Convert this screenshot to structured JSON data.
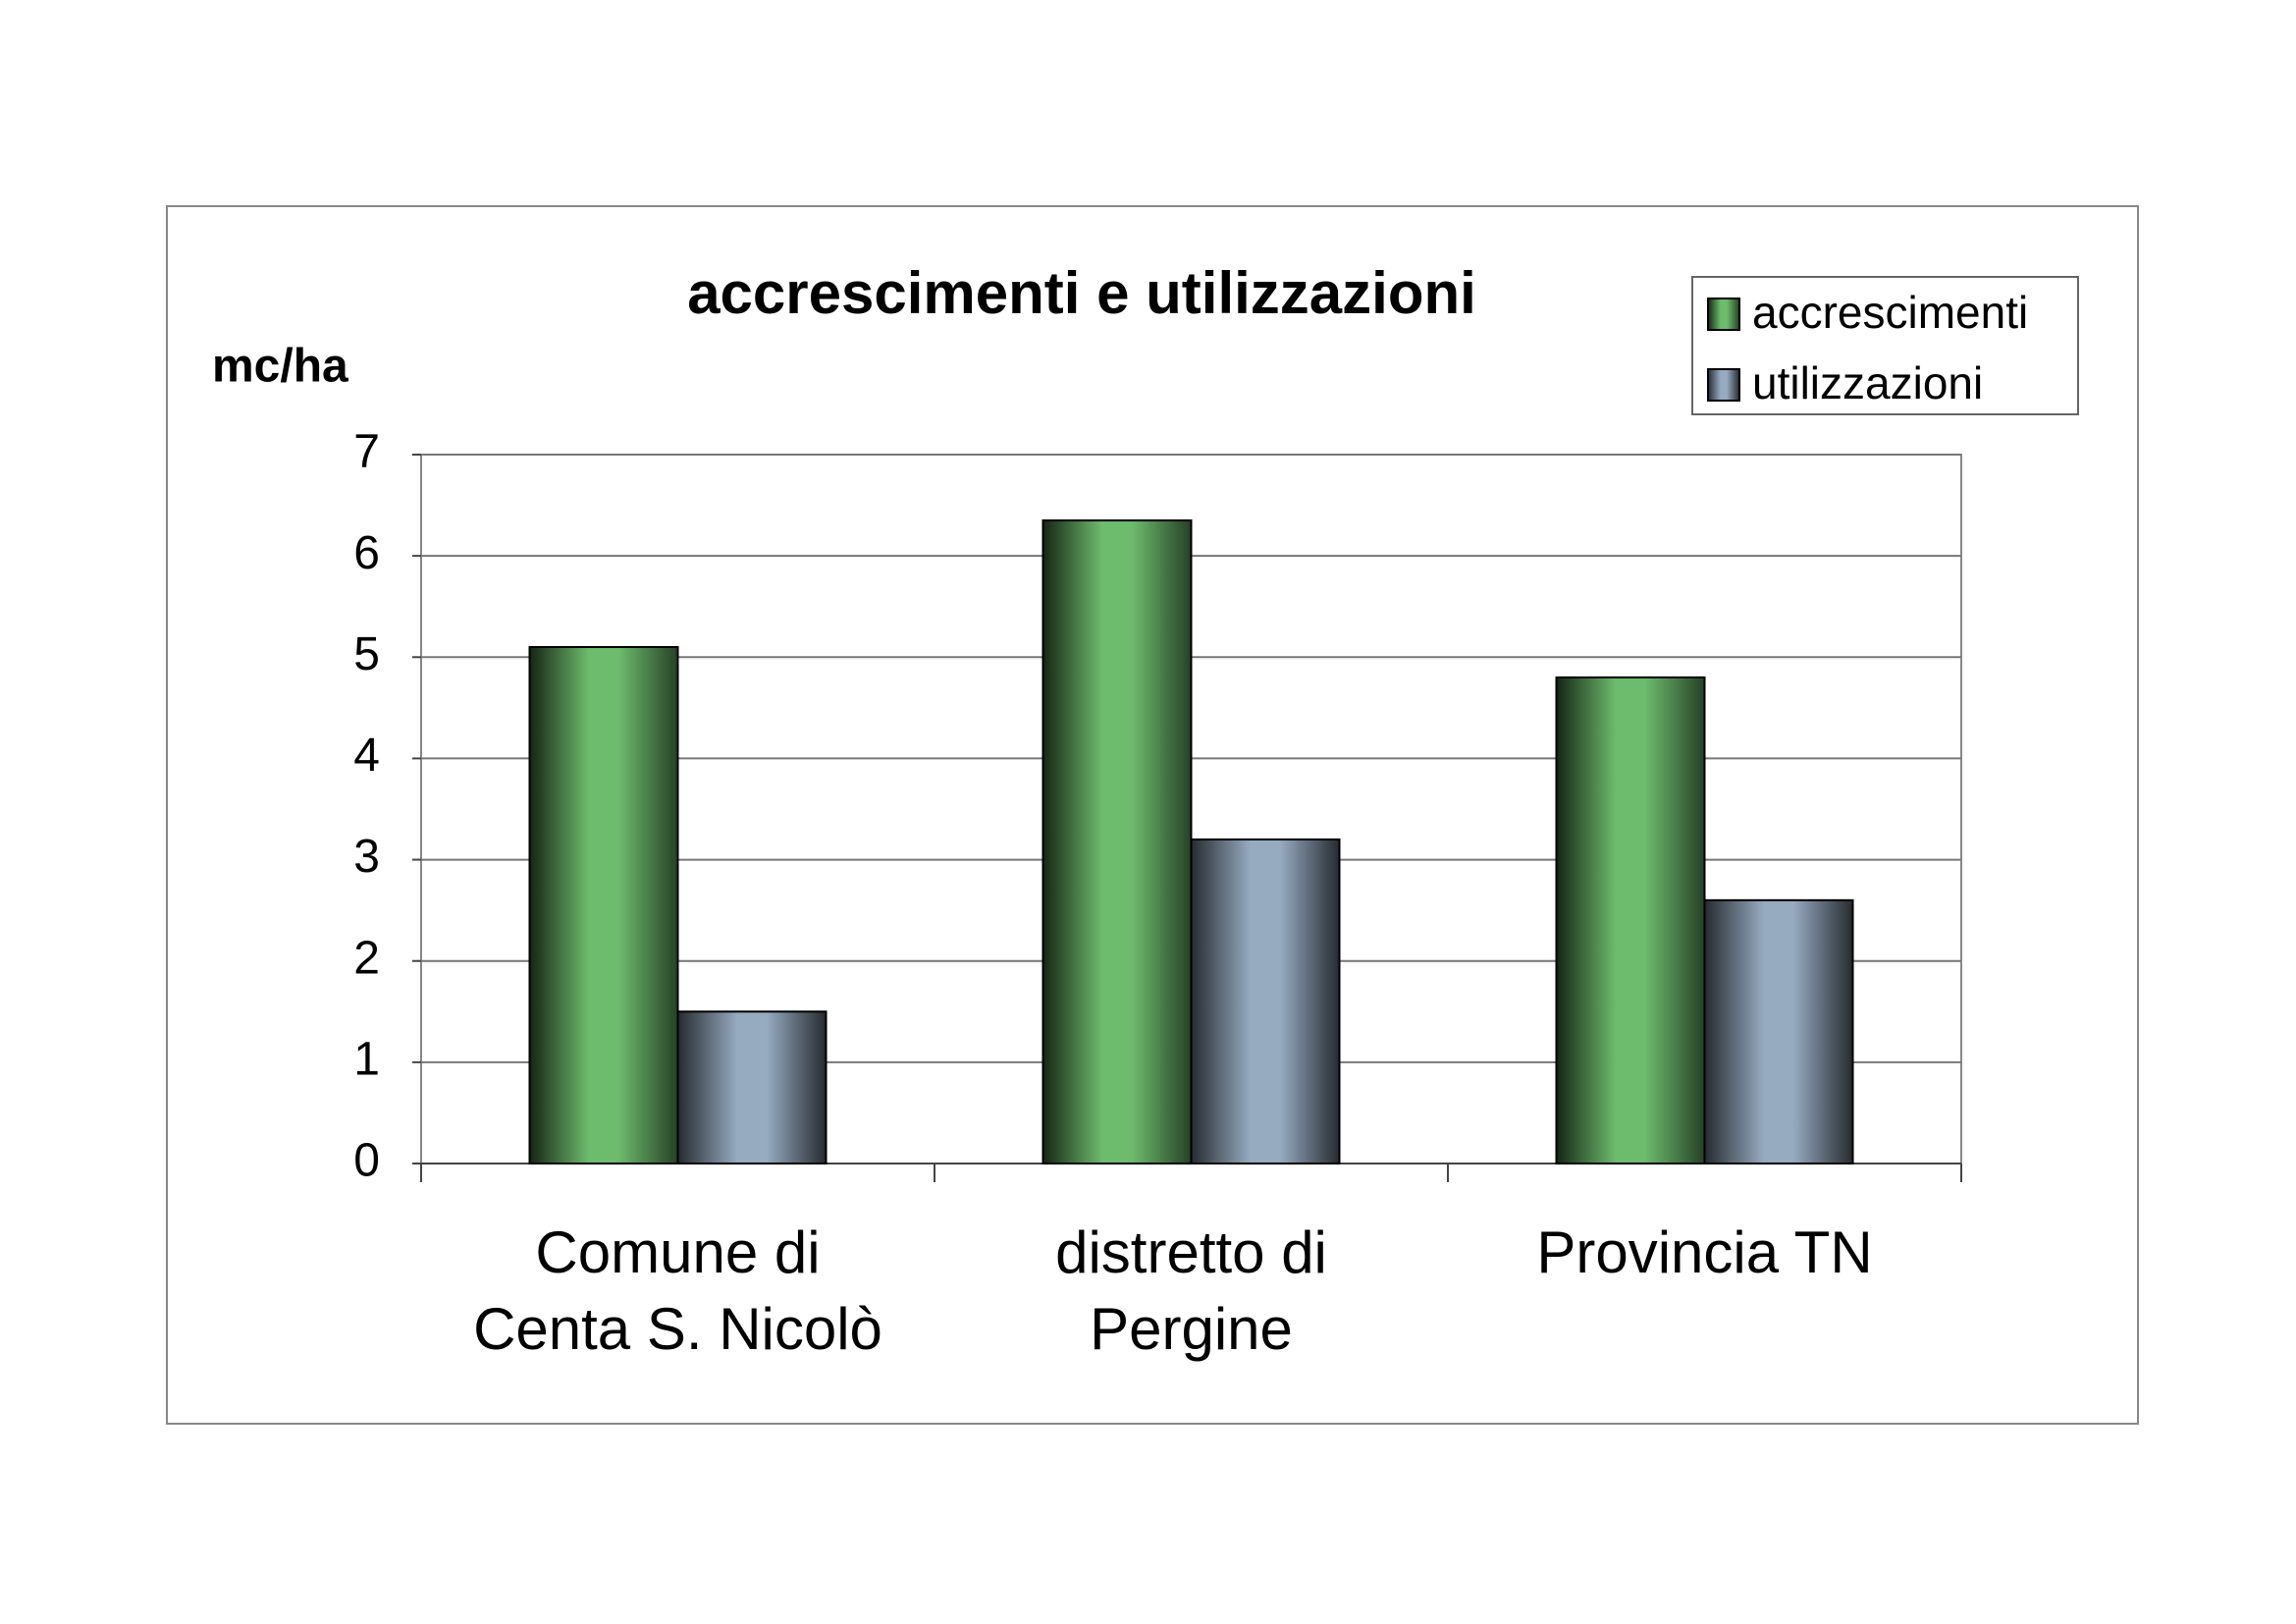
{
  "chart_data": {
    "type": "bar",
    "title": "accrescimenti e utilizzazioni",
    "y_label": "mc/ha",
    "categories": [
      "Comune di\nCenta S. Nicolò",
      "distretto di\nPergine",
      "Provincia TN"
    ],
    "series": [
      {
        "name": "accrescimenti",
        "color": "#6dbb6d",
        "values": [
          5.1,
          6.35,
          4.8
        ]
      },
      {
        "name": "utilizzazioni",
        "color": "#96aac0",
        "values": [
          1.5,
          3.2,
          2.6
        ]
      }
    ],
    "ylim": [
      0,
      7
    ],
    "yticks": [
      0,
      1,
      2,
      3,
      4,
      5,
      6,
      7
    ],
    "grid": true,
    "legend": "top-right"
  }
}
